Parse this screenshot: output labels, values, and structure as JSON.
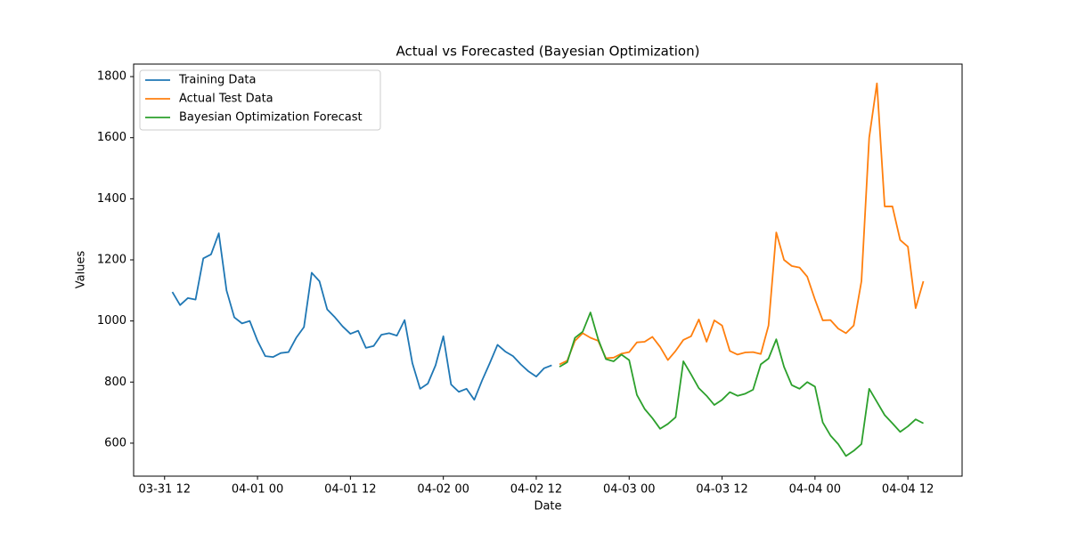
{
  "chart_data": {
    "type": "line",
    "title": "Actual vs Forecasted (Bayesian Optimization)",
    "x_label": "Date",
    "y_label": "Values",
    "x": [
      "03-31 13",
      "03-31 14",
      "03-31 15",
      "03-31 16",
      "03-31 17",
      "03-31 18",
      "03-31 19",
      "03-31 20",
      "03-31 21",
      "03-31 22",
      "03-31 23",
      "04-01 00",
      "04-01 01",
      "04-01 02",
      "04-01 03",
      "04-01 04",
      "04-01 05",
      "04-01 06",
      "04-01 07",
      "04-01 08",
      "04-01 09",
      "04-01 10",
      "04-01 11",
      "04-01 12",
      "04-01 13",
      "04-01 14",
      "04-01 15",
      "04-01 16",
      "04-01 17",
      "04-01 18",
      "04-01 19",
      "04-01 20",
      "04-01 21",
      "04-01 22",
      "04-01 23",
      "04-02 00",
      "04-02 01",
      "04-02 02",
      "04-02 03",
      "04-02 04",
      "04-02 05",
      "04-02 06",
      "04-02 07",
      "04-02 08",
      "04-02 09",
      "04-02 10",
      "04-02 11",
      "04-02 12",
      "04-02 13",
      "04-02 14",
      "04-02 15",
      "04-02 16",
      "04-02 17",
      "04-02 18",
      "04-02 19",
      "04-02 20",
      "04-02 21",
      "04-02 22",
      "04-02 23",
      "04-03 00",
      "04-03 01",
      "04-03 02",
      "04-03 03",
      "04-03 04",
      "04-03 05",
      "04-03 06",
      "04-03 07",
      "04-03 08",
      "04-03 09",
      "04-03 10",
      "04-03 11",
      "04-03 12",
      "04-03 13",
      "04-03 14",
      "04-03 15",
      "04-03 16",
      "04-03 17",
      "04-03 18",
      "04-03 19",
      "04-03 20",
      "04-03 21",
      "04-03 22",
      "04-03 23",
      "04-04 00",
      "04-04 01",
      "04-04 02",
      "04-04 03",
      "04-04 04",
      "04-04 05",
      "04-04 06",
      "04-04 07",
      "04-04 08",
      "04-04 09",
      "04-04 10",
      "04-04 11",
      "04-04 12",
      "04-04 13",
      "04-04 14"
    ],
    "series": [
      {
        "name": "Training Data",
        "color": "#1f77b4",
        "values": [
          1095,
          1052,
          1075,
          1070,
          1205,
          1218,
          1287,
          1100,
          1012,
          992,
          1000,
          935,
          885,
          882,
          895,
          898,
          945,
          980,
          1158,
          1130,
          1038,
          1012,
          982,
          958,
          968,
          912,
          918,
          955,
          960,
          952,
          1003,
          862,
          778,
          795,
          855,
          950,
          792,
          768,
          778,
          742,
          805,
          862,
          922,
          900,
          885,
          858,
          835,
          818,
          845,
          855,
          null,
          null,
          null,
          null,
          null,
          null,
          null,
          null,
          null,
          null,
          null,
          null,
          null,
          null,
          null,
          null,
          null,
          null,
          null,
          null,
          null,
          null,
          null,
          null,
          null,
          null,
          null,
          null,
          null,
          null,
          null,
          null,
          null,
          null,
          null,
          null,
          null,
          null,
          null,
          null,
          null,
          null,
          null,
          null,
          null,
          null,
          null,
          null
        ]
      },
      {
        "name": "Actual Test Data",
        "color": "#ff7f0e",
        "values": [
          null,
          null,
          null,
          null,
          null,
          null,
          null,
          null,
          null,
          null,
          null,
          null,
          null,
          null,
          null,
          null,
          null,
          null,
          null,
          null,
          null,
          null,
          null,
          null,
          null,
          null,
          null,
          null,
          null,
          null,
          null,
          null,
          null,
          null,
          null,
          null,
          null,
          null,
          null,
          null,
          null,
          null,
          null,
          null,
          null,
          null,
          null,
          null,
          null,
          null,
          858,
          870,
          935,
          960,
          945,
          935,
          878,
          880,
          893,
          898,
          930,
          932,
          948,
          915,
          872,
          902,
          938,
          950,
          1005,
          932,
          1002,
          985,
          902,
          890,
          897,
          898,
          892,
          985,
          1290,
          1200,
          1180,
          1175,
          1145,
          1070,
          1002,
          1003,
          975,
          960,
          985,
          1130,
          1600,
          1778,
          1375,
          1375,
          1265,
          1243,
          1042,
          1130
        ]
      },
      {
        "name": "Bayesian Optimization Forecast",
        "color": "#2ca02c",
        "values": [
          null,
          null,
          null,
          null,
          null,
          null,
          null,
          null,
          null,
          null,
          null,
          null,
          null,
          null,
          null,
          null,
          null,
          null,
          null,
          null,
          null,
          null,
          null,
          null,
          null,
          null,
          null,
          null,
          null,
          null,
          null,
          null,
          null,
          null,
          null,
          null,
          null,
          null,
          null,
          null,
          null,
          null,
          null,
          null,
          null,
          null,
          null,
          null,
          null,
          null,
          850,
          865,
          945,
          965,
          1028,
          940,
          875,
          868,
          890,
          872,
          758,
          712,
          682,
          647,
          663,
          685,
          868,
          825,
          780,
          755,
          725,
          742,
          767,
          755,
          762,
          775,
          858,
          877,
          940,
          850,
          790,
          778,
          800,
          785,
          668,
          625,
          597,
          558,
          575,
          597,
          778,
          735,
          692,
          665,
          637,
          655,
          678,
          665
        ]
      }
    ],
    "xlim": [
      "03-31 08",
      "04-04 19"
    ],
    "xticks": [
      "03-31 12",
      "04-01 00",
      "04-01 12",
      "04-02 00",
      "04-02 12",
      "04-03 00",
      "04-03 12",
      "04-04 00",
      "04-04 12"
    ],
    "ylim": [
      492,
      1841
    ],
    "yticks": [
      600,
      800,
      1000,
      1200,
      1400,
      1600,
      1800
    ],
    "legend": "upper left"
  }
}
